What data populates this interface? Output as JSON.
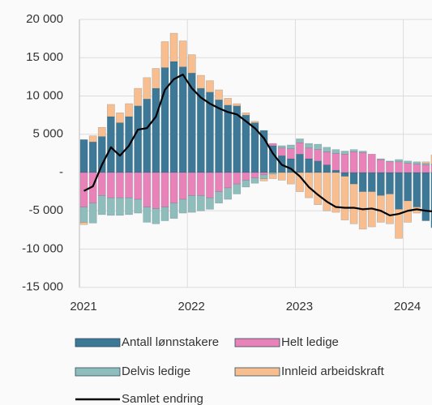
{
  "chart_data": {
    "type": "bar",
    "stacked": true,
    "categories": [
      "2021",
      null,
      null,
      null,
      null,
      null,
      null,
      null,
      null,
      null,
      null,
      null,
      "2022",
      null,
      null,
      null,
      null,
      null,
      null,
      null,
      null,
      null,
      null,
      null,
      "2023",
      null,
      null,
      null,
      null,
      null,
      null,
      null,
      null,
      null,
      null,
      null,
      "2024",
      null,
      null,
      null
    ],
    "series": [
      {
        "name": "Antall lønnstakere",
        "color": "#3d7897",
        "values": [
          4300,
          4000,
          4700,
          7300,
          6500,
          7300,
          8700,
          9600,
          11000,
          13700,
          14500,
          13800,
          13000,
          11000,
          10500,
          9500,
          8800,
          8700,
          7500,
          6500,
          5500,
          3500,
          2200,
          1800,
          2400,
          1800,
          1500,
          1000,
          300,
          -500,
          -1500,
          -2500,
          -2500,
          -3000,
          -2800,
          -4800,
          -3700,
          -4500,
          -6300,
          -7200
        ]
      },
      {
        "name": "Helt ledige",
        "color": "#e882b8",
        "values": [
          -4500,
          -4000,
          -3000,
          -3300,
          -3300,
          -3300,
          -3500,
          -4500,
          -4700,
          -4500,
          -4000,
          -3500,
          -3000,
          -3000,
          -3300,
          -2500,
          -2000,
          -1500,
          -1000,
          -700,
          -300,
          300,
          1000,
          1300,
          1500,
          1400,
          1500,
          1700,
          2200,
          2400,
          2700,
          2600,
          2400,
          1700,
          1400,
          1400,
          1200,
          1100,
          1000,
          1000
        ]
      },
      {
        "name": "Delvis ledige",
        "color": "#8fbdbb",
        "values": [
          -2000,
          -2600,
          -2500,
          -2300,
          -2300,
          -2200,
          -1800,
          -2000,
          -2000,
          -1800,
          -2000,
          -1800,
          -2200,
          -2000,
          -1500,
          -1500,
          -1500,
          -1300,
          -900,
          -700,
          -500,
          -200,
          300,
          500,
          500,
          600,
          700,
          600,
          500,
          400,
          300,
          200,
          0,
          100,
          100,
          300,
          300,
          300,
          200,
          100
        ]
      },
      {
        "name": "Innleid arbeidskraft",
        "color": "#f8be8f",
        "values": [
          -300,
          800,
          1200,
          1600,
          1300,
          1700,
          2300,
          2800,
          2600,
          3400,
          3700,
          3400,
          2400,
          1700,
          1500,
          1300,
          900,
          300,
          300,
          200,
          -300,
          -600,
          -1000,
          -1500,
          -2500,
          -3300,
          -4200,
          -5000,
          -5200,
          -5700,
          -5200,
          -4900,
          -4600,
          -3500,
          -3900,
          -3800,
          -2800,
          -800,
          200,
          1200
        ]
      },
      {
        "name": "Samlet endring",
        "color": "#000000",
        "type": "line",
        "values": [
          -2400,
          -1800,
          1000,
          3300,
          2200,
          3500,
          5600,
          5800,
          7300,
          10800,
          12200,
          12800,
          11000,
          9800,
          9000,
          8400,
          7900,
          7600,
          6700,
          5800,
          4500,
          2500,
          1000,
          500,
          -500,
          -1900,
          -2900,
          -3800,
          -4500,
          -4600,
          -4600,
          -4800,
          -4700,
          -5000,
          -5600,
          -5400,
          -5000,
          -4800,
          -5000,
          -5100
        ]
      }
    ],
    "ylim": [
      -15000,
      20000
    ],
    "yticks": [
      {
        "value": -15000,
        "label": "-15 000"
      },
      {
        "value": -10000,
        "label": "-10 000"
      },
      {
        "value": -5000,
        "label": "-5 000"
      },
      {
        "value": 0,
        "label": "-"
      },
      {
        "value": 5000,
        "label": "5 000"
      },
      {
        "value": 10000,
        "label": "10 000"
      },
      {
        "value": 15000,
        "label": "15 000"
      },
      {
        "value": 20000,
        "label": "20 000"
      }
    ],
    "grid": true,
    "legend": "bottom"
  }
}
